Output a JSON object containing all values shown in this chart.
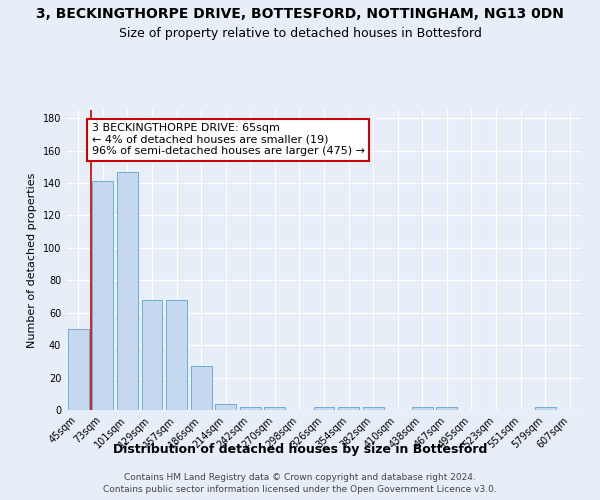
{
  "title": "3, BECKINGTHORPE DRIVE, BOTTESFORD, NOTTINGHAM, NG13 0DN",
  "subtitle": "Size of property relative to detached houses in Bottesford",
  "xlabel": "Distribution of detached houses by size in Bottesford",
  "ylabel": "Number of detached properties",
  "categories": [
    "45sqm",
    "73sqm",
    "101sqm",
    "129sqm",
    "157sqm",
    "186sqm",
    "214sqm",
    "242sqm",
    "270sqm",
    "298sqm",
    "326sqm",
    "354sqm",
    "382sqm",
    "410sqm",
    "438sqm",
    "467sqm",
    "495sqm",
    "523sqm",
    "551sqm",
    "579sqm",
    "607sqm"
  ],
  "values": [
    50,
    141,
    147,
    68,
    68,
    27,
    4,
    2,
    2,
    0,
    2,
    2,
    2,
    0,
    2,
    2,
    0,
    0,
    0,
    2,
    0
  ],
  "bar_color": "#c5d8ef",
  "bar_edge_color": "#6aaed6",
  "annotation_text": "3 BECKINGTHORPE DRIVE: 65sqm\n← 4% of detached houses are smaller (19)\n96% of semi-detached houses are larger (475) →",
  "annotation_box_color": "#ffffff",
  "annotation_box_edge_color": "#cc0000",
  "red_line_color": "#cc0000",
  "footnote1": "Contains HM Land Registry data © Crown copyright and database right 2024.",
  "footnote2": "Contains public sector information licensed under the Open Government Licence v3.0.",
  "ylim": [
    0,
    185
  ],
  "yticks": [
    0,
    20,
    40,
    60,
    80,
    100,
    120,
    140,
    160,
    180
  ],
  "background_color": "#e8eef7",
  "plot_bg_color": "#e8eef7",
  "grid_color": "#ffffff",
  "title_fontsize": 10,
  "subtitle_fontsize": 9,
  "xlabel_fontsize": 9,
  "ylabel_fontsize": 8,
  "tick_fontsize": 7,
  "annotation_fontsize": 8,
  "footnote_fontsize": 6.5
}
